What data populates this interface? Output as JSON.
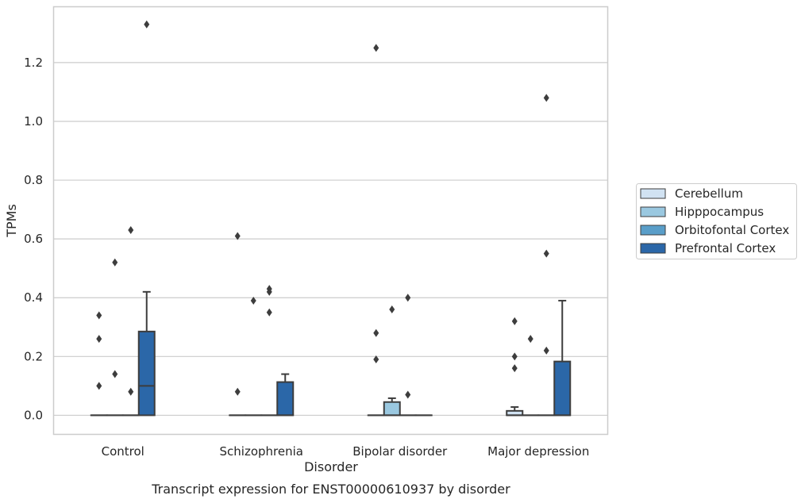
{
  "chart_data": {
    "type": "box",
    "caption": "Transcript expression for ENST00000610937 by disorder",
    "xlabel": "Disorder",
    "ylabel": "TPMs",
    "ylim": [
      -0.065,
      1.39
    ],
    "yticks": [
      0.0,
      0.2,
      0.4,
      0.6,
      0.8,
      1.0,
      1.2
    ],
    "ytick_labels": [
      "0.0",
      "0.2",
      "0.4",
      "0.6",
      "0.8",
      "1.0",
      "1.2"
    ],
    "grid": "horizontal",
    "legend_position": "right",
    "categories": [
      "Control",
      "Schizophrenia",
      "Bipolar disorder",
      "Major depression"
    ],
    "series": [
      {
        "name": "Cerebellum",
        "color": "#d1e2f2",
        "boxes": [
          {
            "q1": 0,
            "median": 0,
            "q3": 0,
            "whisker_low": 0,
            "whisker_high": 0,
            "outliers": [
              0.1,
              0.26,
              0.34
            ]
          },
          {
            "q1": 0,
            "median": 0,
            "q3": 0,
            "whisker_low": 0,
            "whisker_high": 0,
            "outliers": [
              0.08,
              0.61
            ]
          },
          {
            "q1": 0,
            "median": 0,
            "q3": 0,
            "whisker_low": 0,
            "whisker_high": 0,
            "outliers": [
              0.19,
              0.28,
              1.25
            ]
          },
          {
            "q1": 0,
            "median": 0,
            "q3": 0.015,
            "whisker_low": 0,
            "whisker_high": 0.028,
            "outliers": [
              0.16,
              0.2,
              0.32
            ]
          }
        ]
      },
      {
        "name": "Hipppocampus",
        "color": "#9ac8e0",
        "boxes": [
          {
            "q1": 0,
            "median": 0,
            "q3": 0,
            "whisker_low": 0,
            "whisker_high": 0,
            "outliers": [
              0.14,
              0.52
            ]
          },
          {
            "q1": 0,
            "median": 0,
            "q3": 0,
            "whisker_low": 0,
            "whisker_high": 0,
            "outliers": [
              0.39
            ]
          },
          {
            "q1": 0,
            "median": 0,
            "q3": 0.045,
            "whisker_low": 0,
            "whisker_high": 0.058,
            "outliers": [
              0.36
            ]
          },
          {
            "q1": 0,
            "median": 0,
            "q3": 0,
            "whisker_low": 0,
            "whisker_high": 0,
            "outliers": [
              0.26
            ]
          }
        ]
      },
      {
        "name": "Orbitofontal Cortex",
        "color": "#5a9ec9",
        "boxes": [
          {
            "q1": 0,
            "median": 0,
            "q3": 0,
            "whisker_low": 0,
            "whisker_high": 0,
            "outliers": [
              0.08,
              0.63
            ]
          },
          {
            "q1": 0,
            "median": 0,
            "q3": 0,
            "whisker_low": 0,
            "whisker_high": 0,
            "outliers": [
              0.35,
              0.42,
              0.43
            ]
          },
          {
            "q1": 0,
            "median": 0,
            "q3": 0,
            "whisker_low": 0,
            "whisker_high": 0,
            "outliers": [
              0.07,
              0.4
            ]
          },
          {
            "q1": 0,
            "median": 0,
            "q3": 0,
            "whisker_low": 0,
            "whisker_high": 0,
            "outliers": [
              0.22,
              0.55,
              1.08
            ]
          }
        ]
      },
      {
        "name": "Prefrontal Cortex",
        "color": "#2b67a8",
        "boxes": [
          {
            "q1": 0,
            "median": 0.1,
            "q3": 0.285,
            "whisker_low": 0,
            "whisker_high": 0.42,
            "outliers": [
              1.33
            ]
          },
          {
            "q1": 0,
            "median": 0,
            "q3": 0.113,
            "whisker_low": 0,
            "whisker_high": 0.14,
            "outliers": []
          },
          {
            "q1": 0,
            "median": 0,
            "q3": 0,
            "whisker_low": 0,
            "whisker_high": 0,
            "outliers": []
          },
          {
            "q1": 0,
            "median": 0,
            "q3": 0.183,
            "whisker_low": 0,
            "whisker_high": 0.39,
            "outliers": []
          }
        ]
      }
    ]
  }
}
